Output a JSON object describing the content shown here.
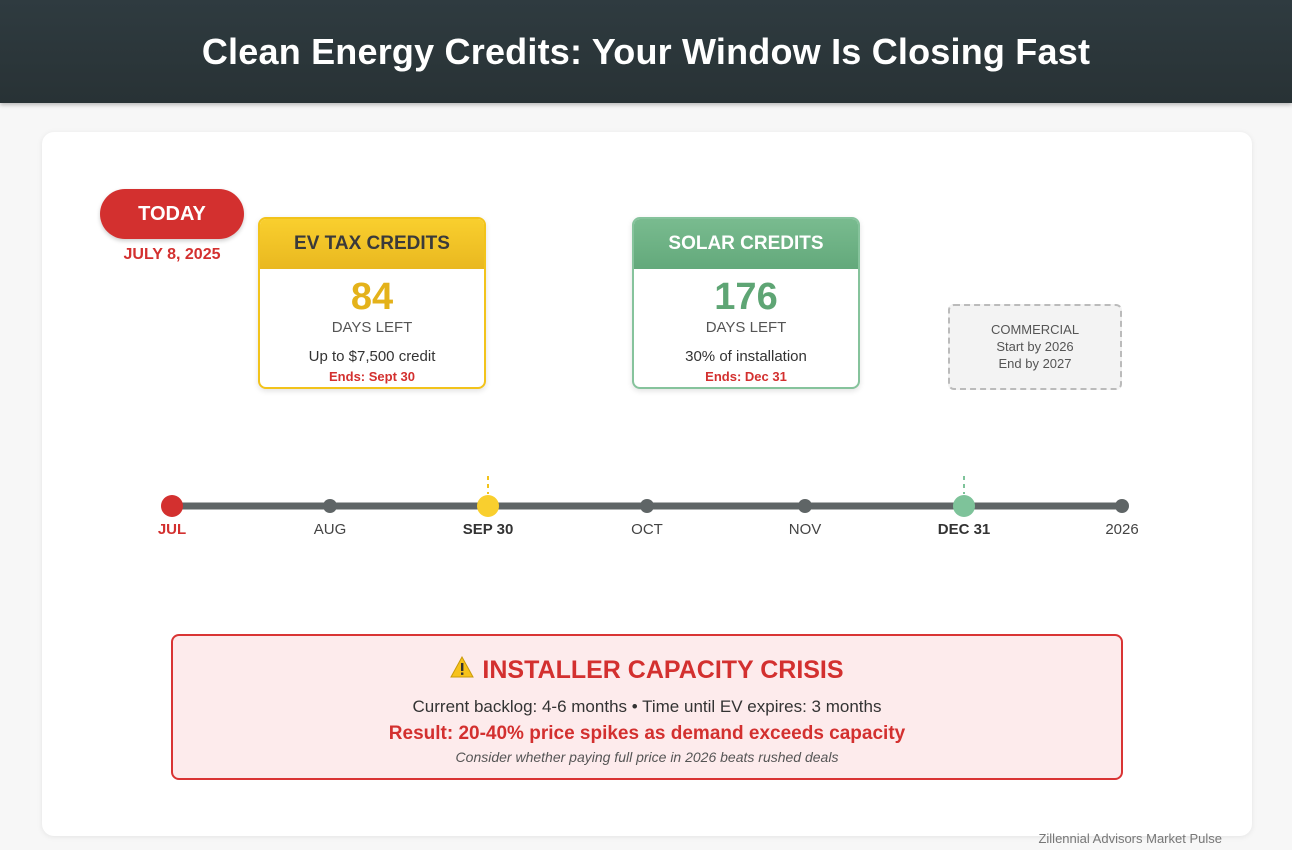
{
  "header": {
    "title": "Clean Energy Credits: Your Window Is Closing Fast"
  },
  "today": {
    "label": "TODAY",
    "date": "JULY 8, 2025"
  },
  "ev": {
    "title": "EV TAX CREDITS",
    "days": "84",
    "days_label": "DAYS LEFT",
    "detail": "Up to $7,500 credit",
    "ends": "Ends: Sept 30"
  },
  "solar": {
    "title": "SOLAR CREDITS",
    "days": "176",
    "days_label": "DAYS LEFT",
    "detail": "30% of installation",
    "ends": "Ends: Dec 31"
  },
  "commercial": {
    "title": "COMMERCIAL",
    "line1": "Start by 2026",
    "line2": "End by 2027"
  },
  "timeline": {
    "labels": [
      "JUL",
      "AUG",
      "SEP 30",
      "OCT",
      "NOV",
      "DEC 31",
      "2026"
    ],
    "colors": {
      "today": "#d3302f",
      "ev": "#f9cf2e",
      "solar": "#7ec39a",
      "track": "#5f6566"
    }
  },
  "crisis": {
    "icon": "warning-icon",
    "title": "INSTALLER CAPACITY CRISIS",
    "line": "Current backlog: 4-6 months • Time until EV expires: 3 months",
    "result": "Result: 20-40% price spikes as demand exceeds capacity",
    "note": "Consider whether paying full price in 2026 beats rushed deals"
  },
  "footer": {
    "credit": "Zillennial Advisors Market Pulse"
  }
}
